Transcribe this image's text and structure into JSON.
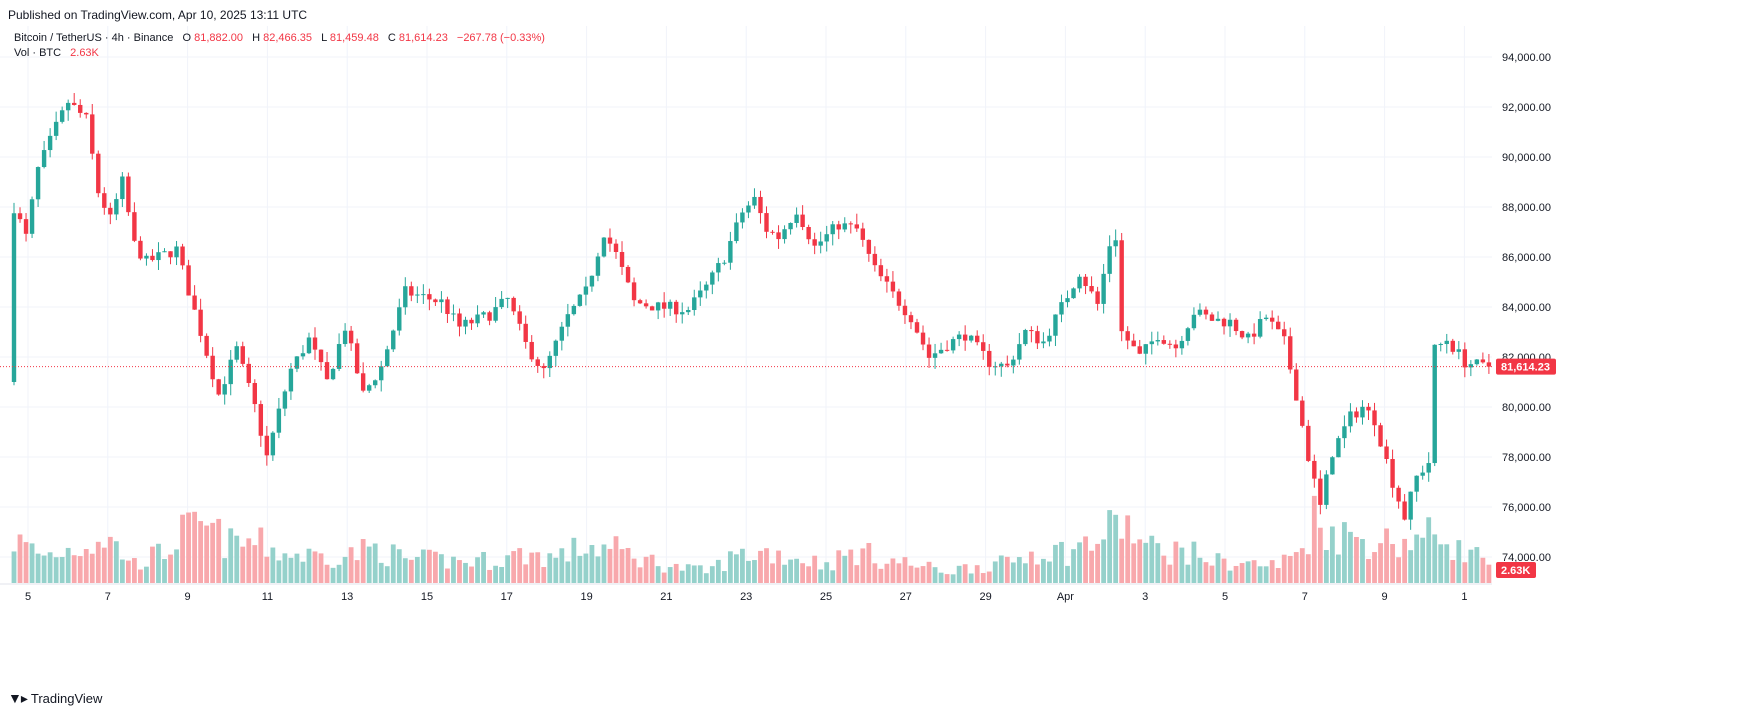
{
  "published": "Published on TradingView.com, Apr 10, 2025 13:11 UTC",
  "footer": {
    "logo_text": "TradingView"
  },
  "colors": {
    "up": "#26a69a",
    "down": "#f23645",
    "up_vol": "#95d1cb",
    "down_vol": "#f8a8ac",
    "grid": "#f0f3fa",
    "last": "#f23645"
  },
  "legend": {
    "symbol": "Bitcoin / TetherUS · 4h · Binance",
    "o_label": "O",
    "o_value": "81,882.00",
    "h_label": "H",
    "h_value": "82,466.35",
    "l_label": "L",
    "l_value": "81,459.48",
    "c_label": "C",
    "c_value": "81,614.23",
    "change": "−267.78 (−0.33%)",
    "vol_label": "Vol · BTC",
    "vol_value": "2.63K"
  },
  "chart_data": {
    "type": "candlestick",
    "ylim": [
      72800,
      95000
    ],
    "y_ticks": [
      74000,
      76000,
      78000,
      80000,
      82000,
      84000,
      86000,
      88000,
      90000,
      92000,
      94000
    ],
    "y_tick_labels": [
      "74,000.00",
      "76,000.00",
      "78,000.00",
      "80,000.00",
      "82,000.00",
      "84,000.00",
      "86,000.00",
      "88,000.00",
      "90,000.00",
      "92,000.00",
      "94,000.00"
    ],
    "x_tick_labels": [
      "5",
      "7",
      "9",
      "11",
      "13",
      "15",
      "17",
      "19",
      "21",
      "23",
      "25",
      "27",
      "29",
      "Apr",
      "3",
      "5",
      "7",
      "9",
      "1"
    ],
    "last_price": 81614.23,
    "last_price_label": "81,614.23",
    "last_volume_label": "2.63K",
    "candles_per_day": 6,
    "keypoints": [
      [
        0,
        81000
      ],
      [
        1,
        88000
      ],
      [
        3,
        86800
      ],
      [
        5,
        89500
      ],
      [
        8,
        91200
      ],
      [
        10,
        92200
      ],
      [
        13,
        91500
      ],
      [
        15,
        88600
      ],
      [
        17,
        87500
      ],
      [
        19,
        89000
      ],
      [
        21,
        86500
      ],
      [
        23,
        85800
      ],
      [
        28,
        86300
      ],
      [
        32,
        83000
      ],
      [
        35,
        80500
      ],
      [
        38,
        82300
      ],
      [
        41,
        80000
      ],
      [
        43,
        78000
      ],
      [
        45,
        79800
      ],
      [
        47,
        81500
      ],
      [
        50,
        82700
      ],
      [
        53,
        81000
      ],
      [
        56,
        83200
      ],
      [
        59,
        80500
      ],
      [
        62,
        81600
      ],
      [
        66,
        84600
      ],
      [
        72,
        84200
      ],
      [
        75,
        83200
      ],
      [
        80,
        83700
      ],
      [
        83,
        84300
      ],
      [
        86,
        82500
      ],
      [
        89,
        81400
      ],
      [
        93,
        83600
      ],
      [
        96,
        84600
      ],
      [
        99,
        87000
      ],
      [
        101,
        86100
      ],
      [
        104,
        84200
      ],
      [
        108,
        84000
      ],
      [
        113,
        83900
      ],
      [
        116,
        84800
      ],
      [
        119,
        86000
      ],
      [
        122,
        87800
      ],
      [
        124,
        88300
      ],
      [
        126,
        87100
      ],
      [
        128,
        86800
      ],
      [
        131,
        87900
      ],
      [
        134,
        86400
      ],
      [
        138,
        87300
      ],
      [
        141,
        87100
      ],
      [
        144,
        85500
      ],
      [
        147,
        84500
      ],
      [
        150,
        83600
      ],
      [
        153,
        82000
      ],
      [
        156,
        82500
      ],
      [
        159,
        82900
      ],
      [
        163,
        81800
      ],
      [
        166,
        81600
      ],
      [
        169,
        83000
      ],
      [
        172,
        82600
      ],
      [
        175,
        84000
      ],
      [
        178,
        85400
      ],
      [
        181,
        84100
      ],
      [
        183,
        86500
      ],
      [
        184,
        86800
      ],
      [
        185,
        83000
      ],
      [
        188,
        82000
      ],
      [
        191,
        82900
      ],
      [
        194,
        82400
      ],
      [
        197,
        83800
      ],
      [
        200,
        83500
      ],
      [
        203,
        83400
      ],
      [
        206,
        82700
      ],
      [
        209,
        83600
      ],
      [
        212,
        82600
      ],
      [
        214,
        80500
      ],
      [
        216,
        78000
      ],
      [
        218,
        76000
      ],
      [
        220,
        78200
      ],
      [
        223,
        79600
      ],
      [
        225,
        80000
      ],
      [
        227,
        79500
      ],
      [
        230,
        77000
      ],
      [
        232,
        75600
      ],
      [
        234,
        77200
      ],
      [
        236,
        77800
      ],
      [
        237,
        82300
      ],
      [
        239,
        82700
      ],
      [
        242,
        81800
      ],
      [
        245,
        81614
      ]
    ],
    "vol_keypoints": [
      [
        0,
        2.2
      ],
      [
        5,
        1.4
      ],
      [
        10,
        1.8
      ],
      [
        15,
        2.4
      ],
      [
        20,
        1.0
      ],
      [
        25,
        1.6
      ],
      [
        28,
        2.6
      ],
      [
        32,
        2.8
      ],
      [
        36,
        2.0
      ],
      [
        40,
        2.1
      ],
      [
        45,
        1.5
      ],
      [
        50,
        1.4
      ],
      [
        55,
        1.4
      ],
      [
        60,
        1.8
      ],
      [
        65,
        1.2
      ],
      [
        70,
        1.2
      ],
      [
        75,
        1.1
      ],
      [
        80,
        1.2
      ],
      [
        85,
        1.5
      ],
      [
        90,
        1.3
      ],
      [
        95,
        1.9
      ],
      [
        100,
        1.7
      ],
      [
        105,
        1.2
      ],
      [
        110,
        0.8
      ],
      [
        115,
        0.6
      ],
      [
        120,
        1.4
      ],
      [
        125,
        1.6
      ],
      [
        130,
        1.3
      ],
      [
        135,
        1.0
      ],
      [
        140,
        1.6
      ],
      [
        145,
        1.2
      ],
      [
        150,
        0.9
      ],
      [
        155,
        0.6
      ],
      [
        160,
        0.9
      ],
      [
        165,
        1.0
      ],
      [
        170,
        1.7
      ],
      [
        175,
        1.6
      ],
      [
        180,
        2.2
      ],
      [
        184,
        3.2
      ],
      [
        188,
        1.8
      ],
      [
        195,
        1.6
      ],
      [
        200,
        1.1
      ],
      [
        205,
        1.0
      ],
      [
        210,
        0.9
      ],
      [
        214,
        1.8
      ],
      [
        216,
        3.4
      ],
      [
        220,
        2.5
      ],
      [
        225,
        2.2
      ],
      [
        230,
        2.1
      ],
      [
        234,
        2.3
      ],
      [
        237,
        2.6
      ],
      [
        240,
        1.7
      ],
      [
        245,
        1.2
      ]
    ],
    "vol_max": 4.9
  }
}
